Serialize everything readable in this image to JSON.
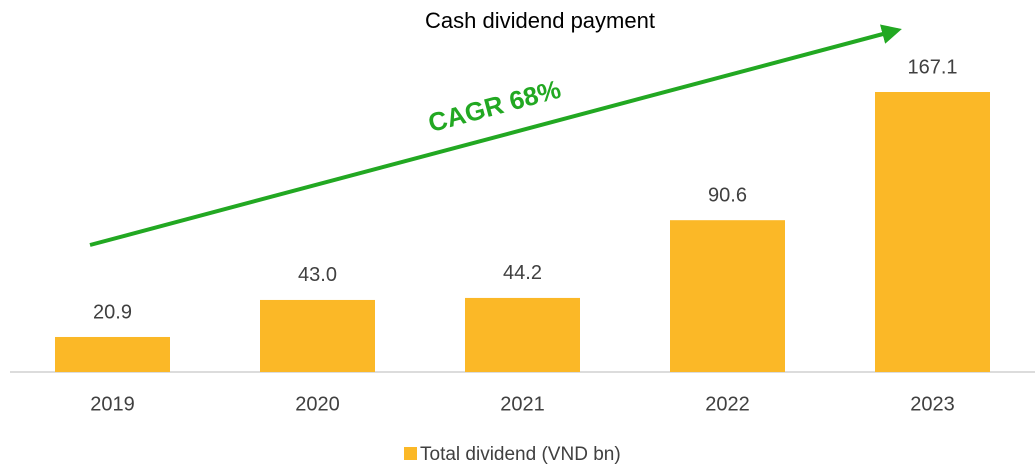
{
  "chart_data": {
    "type": "bar",
    "title": "Cash dividend payment",
    "annotation": "CAGR 68%",
    "categories": [
      "2019",
      "2020",
      "2021",
      "2022",
      "2023"
    ],
    "series": [
      {
        "name": "Total dividend (VND bn)",
        "color": "#fbb827",
        "values": [
          20.9,
          43.0,
          44.2,
          90.6,
          167.1
        ],
        "value_labels": [
          "20.9",
          "43.0",
          "44.2",
          "90.6",
          "167.1"
        ]
      }
    ],
    "annotation_color": "#22a822"
  }
}
